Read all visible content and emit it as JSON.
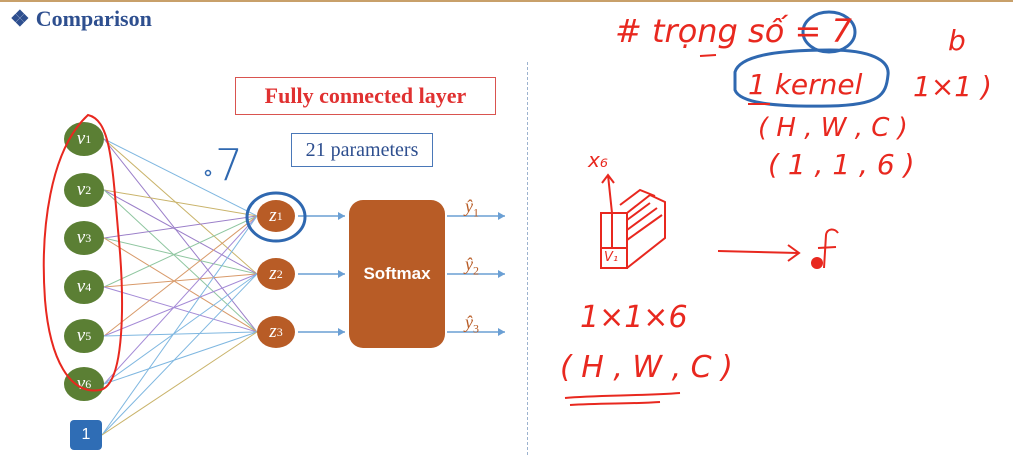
{
  "header": {
    "bullet": "❖",
    "title": "Comparison"
  },
  "diagram": {
    "layer_title": "Fully connected layer",
    "param_label": "21 parameters",
    "softmax_label": "Softmax",
    "input_nodes": [
      {
        "label": "v",
        "sub": "1"
      },
      {
        "label": "v",
        "sub": "2"
      },
      {
        "label": "v",
        "sub": "3"
      },
      {
        "label": "v",
        "sub": "4"
      },
      {
        "label": "v",
        "sub": "5"
      },
      {
        "label": "v",
        "sub": "6"
      }
    ],
    "bias_label": "1",
    "hidden_nodes": [
      {
        "label": "z",
        "sub": "1"
      },
      {
        "label": "z",
        "sub": "2"
      },
      {
        "label": "z",
        "sub": "3"
      }
    ],
    "outputs": [
      {
        "label": "ŷ",
        "sub": "1"
      },
      {
        "label": "ŷ",
        "sub": "2"
      },
      {
        "label": "ŷ",
        "sub": "3"
      }
    ]
  },
  "annotations": {
    "left_seven": "7",
    "trong_so": "# trọng số = 7",
    "b": "b",
    "one_kernel": "1 kernel",
    "one_by_one": "1×1 )",
    "hwc": "( H , W , C )",
    "one_one_six": "( 1 , 1 , 6 )",
    "x6": "x₆",
    "v1": "V₁",
    "onexonexsix": "1×1×6",
    "hwc2": "( H , W , C )"
  },
  "colors": {
    "title": "#2e4f8f",
    "ink_red": "#e8281f",
    "ink_blue": "#2f68b0",
    "node_green": "#5b7f34",
    "node_orange": "#b85c26"
  }
}
